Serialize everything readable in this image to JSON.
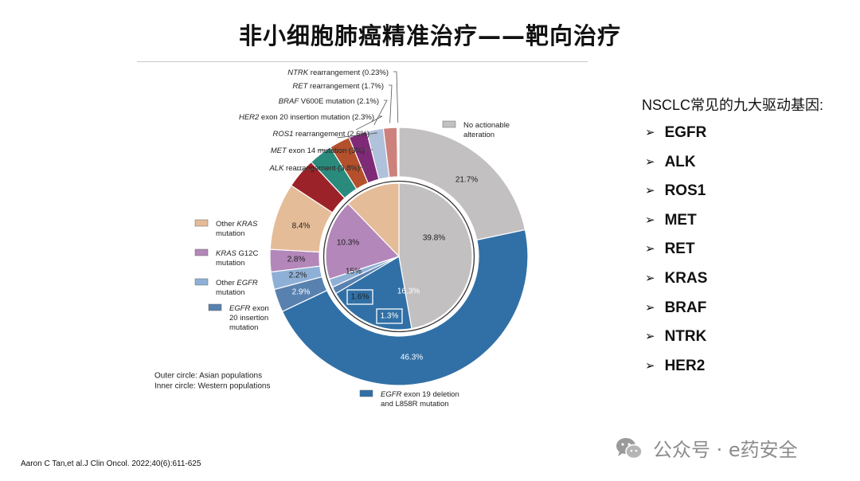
{
  "slide": {
    "title": "非小细胞肺癌精准治疗——靶向治疗",
    "drivers_title": "NSCLC常见的九大驱动基因:",
    "drivers": [
      "EGFR",
      "ALK",
      "ROS1",
      "MET",
      "RET",
      "KRAS",
      "BRAF",
      "NTRK",
      "HER2"
    ],
    "citation": "Aaron C Tan,et al.J Clin Oncol. 2022;40(6):611-625",
    "watermark": "公众号 · e药安全",
    "watermark_icon": "wechat-icon"
  },
  "chart_data": {
    "type": "pie",
    "subtype": "nested-donut",
    "outer_ring": {
      "name": "Outer circle: Asian populations",
      "slices": [
        {
          "label": "No actionable alteration",
          "value": 21.7,
          "color": "#c2c0c1"
        },
        {
          "label": "EGFR exon 19 deletion and L858R mutation",
          "value": 46.3,
          "color": "#3170a6"
        },
        {
          "label": "EGFR exon 20 insertion mutation",
          "value": 2.9,
          "color": "#5981b0"
        },
        {
          "label": "Other EGFR mutation",
          "value": 2.2,
          "color": "#8fb0d6"
        },
        {
          "label": "KRAS G12C mutation",
          "value": 2.8,
          "color": "#b387b9"
        },
        {
          "label": "Other KRAS mutation",
          "value": 8.4,
          "color": "#e5bc98"
        },
        {
          "label": "ALK rearrangement (3.8%)",
          "value": 3.8,
          "color": "#9b2228"
        },
        {
          "label": "MET exon 14 mutation (3%)",
          "value": 3.0,
          "color": "#2a8b7d"
        },
        {
          "label": "ROS1 rearrangement (2.6%)",
          "value": 2.6,
          "color": "#b4502c"
        },
        {
          "label": "HER2 exon 20 insertion mutation (2.3%)",
          "value": 2.3,
          "color": "#7f2a76"
        },
        {
          "label": "BRAF V600E mutation (2.1%)",
          "value": 2.1,
          "color": "#b0c1db"
        },
        {
          "label": "RET rearrangement (1.7%)",
          "value": 1.7,
          "color": "#cd817c"
        },
        {
          "label": "NTRK rearrangement (0.23%)",
          "value": 0.23,
          "color": "#f1f1f1"
        }
      ],
      "data_labels": [
        "21.7%",
        "46.3%",
        "2.9%",
        "2.2%",
        "2.8%",
        "8.4%"
      ]
    },
    "inner_ring": {
      "name": "Inner circle: Western populations",
      "slices": [
        {
          "label": "No actionable alteration",
          "value": 39.8,
          "color": "#c2c0c1"
        },
        {
          "label": "EGFR exon 19 deletion and L858R mutation",
          "value": 16.3,
          "color": "#3170a6"
        },
        {
          "label": "EGFR exon 20 insertion mutation",
          "value": 1.3,
          "color": "#5981b0"
        },
        {
          "label": "Other EGFR mutation",
          "value": 1.6,
          "color": "#8fb0d6"
        },
        {
          "label": "KRAS G12C mutation",
          "value": 15,
          "color": "#b387b9"
        },
        {
          "label": "Other KRAS mutation",
          "value": 10.3,
          "color": "#e5bc98"
        }
      ],
      "data_labels": [
        "39.8%",
        "16.3%",
        "1.3%",
        "1.6%",
        "15%",
        "10.3%"
      ]
    },
    "callouts": [
      {
        "italic": "NTRK",
        "text": " rearrangement (0.23%)"
      },
      {
        "italic": "RET",
        "text": " rearrangement (1.7%)"
      },
      {
        "italic": "BRAF",
        "text": " V600E mutation (2.1%)"
      },
      {
        "italic": "HER2",
        "text": " exon 20 insertion mutation (2.3%)"
      },
      {
        "italic": "ROS1",
        "text": " rearrangement (2.6%)"
      },
      {
        "italic": "MET",
        "text": " exon 14 mutation (3%)"
      },
      {
        "italic": "ALK",
        "text": " rearrangement (3.8%)"
      }
    ],
    "legend": [
      {
        "lines": [
          [
            {
              "t": "No actionable"
            }
          ],
          [
            {
              "t": "alteration"
            }
          ]
        ],
        "color": "#c2c0c1"
      },
      {
        "lines": [
          [
            {
              "t": "Other "
            },
            {
              "t": "KRAS",
              "i": true
            }
          ],
          [
            {
              "t": "mutation"
            }
          ]
        ],
        "color": "#e5bc98"
      },
      {
        "lines": [
          [
            {
              "t": "KRAS",
              "i": true
            },
            {
              "t": " G12C"
            }
          ],
          [
            {
              "t": "mutation"
            }
          ]
        ],
        "color": "#b387b9"
      },
      {
        "lines": [
          [
            {
              "t": "Other "
            },
            {
              "t": "EGFR",
              "i": true
            }
          ],
          [
            {
              "t": "mutation"
            }
          ]
        ],
        "color": "#8fb0d6"
      },
      {
        "lines": [
          [
            {
              "t": "EGFR",
              "i": true
            },
            {
              "t": " exon"
            }
          ],
          [
            {
              "t": "20 insertion"
            }
          ],
          [
            {
              "t": "mutation"
            }
          ]
        ],
        "color": "#5981b0"
      },
      {
        "lines": [
          [
            {
              "t": "EGFR",
              "i": true
            },
            {
              "t": " exon 19 deletion"
            }
          ],
          [
            {
              "t": "and L858R mutation"
            }
          ]
        ],
        "color": "#3170a6"
      }
    ],
    "notes": [
      "Outer circle: Asian populations",
      "Inner circle: Western populations"
    ]
  }
}
